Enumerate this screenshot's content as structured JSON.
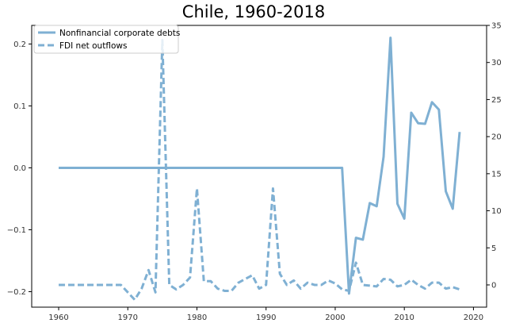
{
  "chart_data": {
    "type": "line",
    "title": "Chile, 1960-2018",
    "xlabel": "",
    "ylabel": "",
    "xlim": [
      1956.1,
      2021.9
    ],
    "x_ticks": [
      1960,
      1970,
      1980,
      1990,
      2000,
      2010,
      2020
    ],
    "ylim_left": [
      -0.225,
      0.23
    ],
    "y_ticks_left": [
      "0.2",
      "0.1",
      "0.0",
      "−0.1",
      "−0.2"
    ],
    "y_ticks_left_values": [
      0.2,
      0.1,
      0.0,
      -0.1,
      -0.2
    ],
    "ylim_right": [
      -3.0,
      35.0
    ],
    "y_ticks_right": [
      "35",
      "30",
      "25",
      "20",
      "15",
      "10",
      "5",
      "0"
    ],
    "y_ticks_right_values": [
      35,
      30,
      25,
      20,
      15,
      10,
      5,
      0
    ],
    "grid": false,
    "legend_position": "top-left",
    "color": "#7fb0d3",
    "series": [
      {
        "name": "Nonfinancial corporate debts",
        "axis": "left",
        "style": "solid",
        "x": [
          1960,
          1961,
          1962,
          1963,
          1964,
          1965,
          1966,
          1967,
          1968,
          1969,
          1970,
          1971,
          1972,
          1973,
          1974,
          1975,
          1976,
          1977,
          1978,
          1979,
          1980,
          1981,
          1982,
          1983,
          1984,
          1985,
          1986,
          1987,
          1988,
          1989,
          1990,
          1991,
          1992,
          1993,
          1994,
          1995,
          1996,
          1997,
          1998,
          1999,
          2000,
          2001,
          2002,
          2003,
          2004,
          2005,
          2006,
          2007,
          2008,
          2009,
          2010,
          2011,
          2012,
          2013,
          2014,
          2015,
          2016,
          2017,
          2018
        ],
        "values": [
          0,
          0,
          0,
          0,
          0,
          0,
          0,
          0,
          0,
          0,
          0,
          0,
          0,
          0,
          0,
          0,
          0,
          0,
          0,
          0,
          0,
          0,
          0,
          0,
          0,
          0,
          0,
          0,
          0,
          0,
          0,
          0,
          0,
          0,
          0,
          0,
          0,
          0,
          0,
          0,
          0,
          0,
          -0.203,
          -0.113,
          -0.116,
          -0.057,
          -0.062,
          0.018,
          0.21,
          -0.058,
          -0.082,
          0.089,
          0.072,
          0.071,
          0.106,
          0.094,
          -0.038,
          -0.066,
          0.058
        ]
      },
      {
        "name": "FDI net outflows",
        "axis": "right",
        "style": "dashed",
        "x": [
          1960,
          1961,
          1962,
          1963,
          1964,
          1965,
          1966,
          1967,
          1968,
          1969,
          1970,
          1971,
          1972,
          1973,
          1974,
          1975,
          1976,
          1977,
          1978,
          1979,
          1980,
          1981,
          1982,
          1983,
          1984,
          1985,
          1986,
          1987,
          1988,
          1989,
          1990,
          1991,
          1992,
          1993,
          1994,
          1995,
          1996,
          1997,
          1998,
          1999,
          2000,
          2001,
          2002,
          2003,
          2004,
          2005,
          2006,
          2007,
          2008,
          2009,
          2010,
          2011,
          2012,
          2013,
          2014,
          2015,
          2016,
          2017,
          2018
        ],
        "values": [
          0,
          0,
          0,
          0,
          0,
          0,
          0,
          0,
          0,
          0,
          -1.0,
          -2.0,
          -0.5,
          2.0,
          -1.0,
          33.0,
          0.0,
          -0.6,
          0.0,
          1.0,
          13.0,
          0.5,
          0.5,
          -0.5,
          -0.8,
          -0.8,
          0.3,
          0.8,
          1.3,
          -0.5,
          0.0,
          13.0,
          1.5,
          0.0,
          0.6,
          -0.5,
          0.3,
          0.0,
          0.0,
          0.6,
          0.2,
          -0.6,
          -0.8,
          3.0,
          0.0,
          -0.1,
          -0.2,
          0.8,
          0.7,
          -0.2,
          0.0,
          0.7,
          0.0,
          -0.5,
          0.3,
          0.3,
          -0.5,
          -0.3,
          -0.6
        ]
      }
    ]
  }
}
